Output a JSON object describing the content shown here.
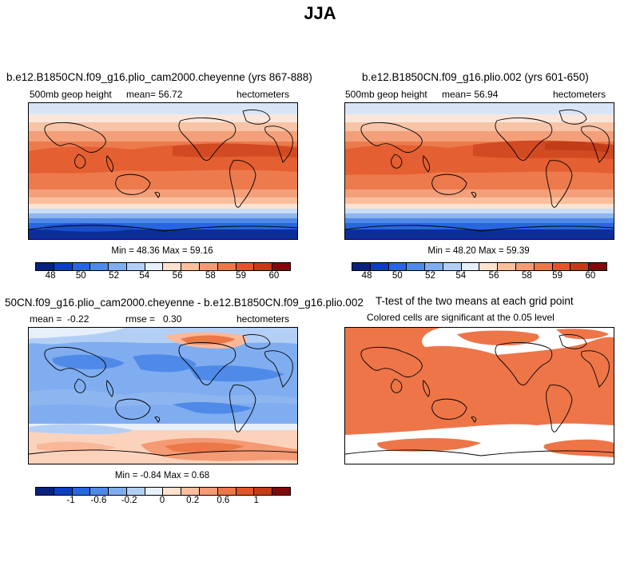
{
  "figure_title": "JJA",
  "panels": {
    "p1": {
      "title": "b.e12.B1850CN.f09_g16.plio_cam2000.cheyenne (yrs 867-888)",
      "var": "500mb geop height",
      "mean_label": "mean=",
      "mean_value": "56.72",
      "units": "hectometers",
      "min_label": "Min =",
      "min_value": "48.36",
      "max_label": "Max =",
      "max_value": "59.16"
    },
    "p2": {
      "title": "b.e12.B1850CN.f09_g16.plio.002 (yrs 601-650)",
      "var": "500mb geop height",
      "mean_label": "mean=",
      "mean_value": "56.94",
      "units": "hectometers",
      "min_label": "Min =",
      "min_value": "48.20",
      "max_label": "Max =",
      "max_value": "59.39"
    },
    "p3": {
      "title": "50CN.f09_g16.plio_cam2000.cheyenne - b.e12.B1850CN.f09_g16.plio.002",
      "mean_label": "mean =",
      "mean_value": "-0.22",
      "rmse_label": "rmse =",
      "rmse_value": "0.30",
      "units": "hectometers",
      "min_label": "Min =",
      "min_value": "-0.84",
      "max_label": "Max =",
      "max_value": "0.68"
    },
    "p4": {
      "title": "T-test of the two means at each grid point",
      "subtitle": "Colored cells are significant at the 0.05 level"
    }
  },
  "colorbar_abs": {
    "colors": [
      "#08217f",
      "#0b3fbf",
      "#2766de",
      "#4f8ae8",
      "#7fadf0",
      "#b4cff5",
      "#e6effa",
      "#fde2cf",
      "#fbbf9e",
      "#f49a74",
      "#ec7748",
      "#e0562a",
      "#c33c18",
      "#7f0a0a"
    ],
    "labels": [
      "48",
      "50",
      "52",
      "54",
      "56",
      "58",
      "59",
      "60"
    ]
  },
  "colorbar_diff": {
    "colors": [
      "#08217f",
      "#0b3fbf",
      "#2766de",
      "#4f8ae8",
      "#7fadf0",
      "#b4cff5",
      "#e6effa",
      "#fde2cf",
      "#fbbf9e",
      "#f49a74",
      "#ec7748",
      "#e0562a",
      "#c33c18",
      "#7f0a0a"
    ],
    "labels": [
      "-1",
      "-0.6",
      "-0.2",
      "0",
      "0.2",
      "0.6",
      "1"
    ]
  }
}
